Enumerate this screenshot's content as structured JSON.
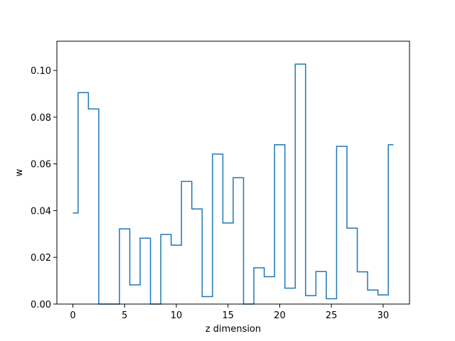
{
  "chart_data": {
    "type": "line",
    "drawstyle": "steps-mid",
    "title": "",
    "xlabel": "z dimension",
    "ylabel": "w",
    "xlim": [
      -1.55,
      32.55
    ],
    "ylim": [
      0.0,
      0.1125
    ],
    "xticks": [
      0,
      5,
      10,
      15,
      20,
      25,
      30
    ],
    "yticks": [
      0.0,
      0.02,
      0.04,
      0.06,
      0.08,
      0.1
    ],
    "ytick_labels": [
      "0.00",
      "0.02",
      "0.04",
      "0.06",
      "0.08",
      "0.10"
    ],
    "grid": false,
    "series": [
      {
        "color": "#1f77b4",
        "x": [
          0,
          1,
          2,
          3,
          4,
          5,
          6,
          7,
          8,
          9,
          10,
          11,
          12,
          13,
          14,
          15,
          16,
          17,
          18,
          19,
          20,
          21,
          22,
          23,
          24,
          25,
          26,
          27,
          28,
          29,
          30,
          31
        ],
        "values": [
          0.039,
          0.0905,
          0.0835,
          0.0,
          0.0,
          0.0322,
          0.0082,
          0.0282,
          0.0,
          0.0298,
          0.0252,
          0.0525,
          0.0407,
          0.0032,
          0.0642,
          0.0347,
          0.0541,
          0.0,
          0.0155,
          0.0117,
          0.0682,
          0.0068,
          0.1027,
          0.0036,
          0.0139,
          0.0023,
          0.0675,
          0.0325,
          0.0138,
          0.006,
          0.0039,
          0.0682
        ]
      }
    ]
  }
}
